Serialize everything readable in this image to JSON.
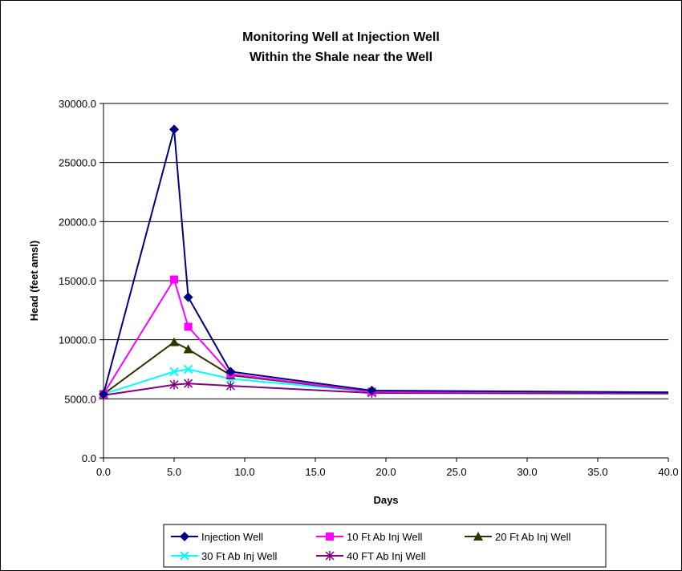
{
  "chart_data": {
    "type": "line",
    "title": "Monitoring Well at Injection Well",
    "subtitle": "Within the Shale near the Well",
    "xlabel": "Days",
    "ylabel": "Head (feet amsl)",
    "xlim": [
      0,
      40
    ],
    "ylim": [
      0,
      30000
    ],
    "xticks": [
      "0.0",
      "5.0",
      "10.0",
      "15.0",
      "20.0",
      "25.0",
      "30.0",
      "35.0",
      "40.0"
    ],
    "yticks": [
      "0.0",
      "5000.0",
      "10000.0",
      "15000.0",
      "20000.0",
      "25000.0",
      "30000.0"
    ],
    "grid": "horizontal",
    "legend_position": "bottom",
    "series": [
      {
        "name": "Injection Well",
        "color": "#000080",
        "marker": "diamond",
        "points": [
          [
            0,
            5400
          ],
          [
            5,
            27800
          ],
          [
            6,
            13600
          ],
          [
            9,
            7300
          ],
          [
            19,
            5700
          ],
          [
            40,
            5550
          ]
        ]
      },
      {
        "name": "10 Ft Ab Inj Well",
        "color": "#ff00ff",
        "marker": "square",
        "points": [
          [
            0,
            5400
          ],
          [
            5,
            15100
          ],
          [
            6,
            11100
          ],
          [
            9,
            7100
          ],
          [
            19,
            5600
          ],
          [
            40,
            5550
          ]
        ]
      },
      {
        "name": "20 Ft Ab Inj Well",
        "color": "#333300",
        "marker": "triangle",
        "points": [
          [
            0,
            5400
          ],
          [
            5,
            9800
          ],
          [
            6,
            9200
          ],
          [
            9,
            7000
          ],
          [
            19,
            5600
          ],
          [
            40,
            5550
          ]
        ]
      },
      {
        "name": "30 Ft Ab Inj Well",
        "color": "#00ffff",
        "marker": "x",
        "points": [
          [
            0,
            5400
          ],
          [
            5,
            7300
          ],
          [
            6,
            7500
          ],
          [
            9,
            6700
          ],
          [
            19,
            5600
          ],
          [
            40,
            5550
          ]
        ]
      },
      {
        "name": "40 FT Ab Inj Well",
        "color": "#800080",
        "marker": "asterisk",
        "points": [
          [
            0,
            5300
          ],
          [
            5,
            6200
          ],
          [
            6,
            6300
          ],
          [
            9,
            6100
          ],
          [
            19,
            5500
          ],
          [
            40,
            5450
          ]
        ]
      }
    ]
  }
}
